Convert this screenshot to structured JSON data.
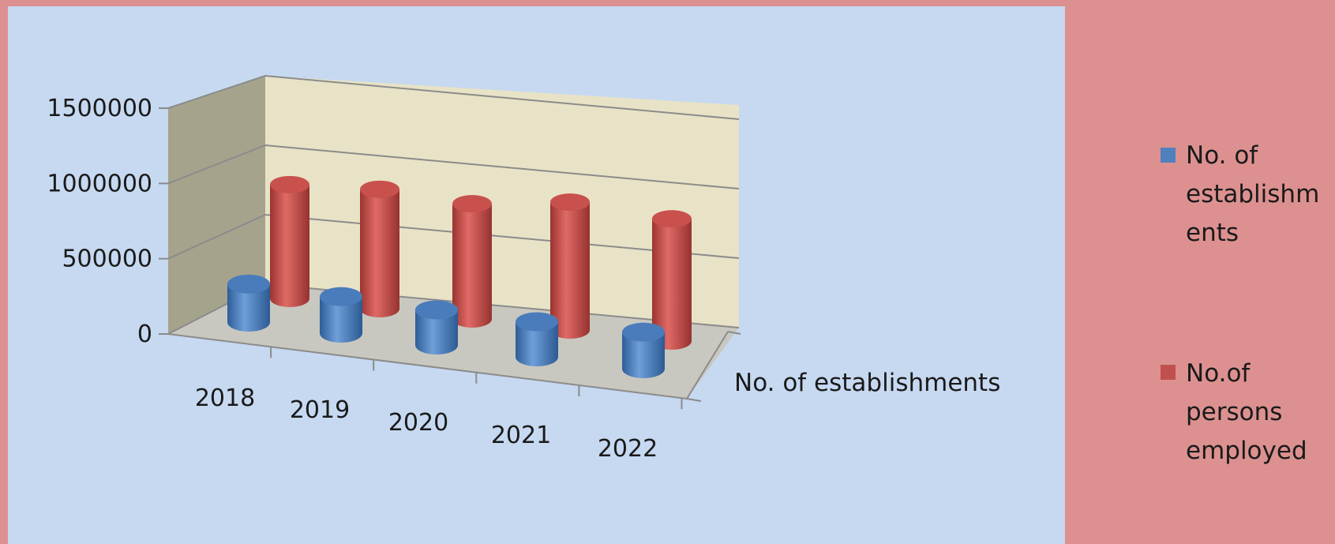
{
  "colors": {
    "frame": "#dc9190",
    "plot_area": "#c6d9f1",
    "back_wall": "#e8e3c6",
    "side_wall": "#a6a38c",
    "floor": "#c8c8c0",
    "establishments": "#4f81bd",
    "persons": "#c0504d"
  },
  "chart_data": {
    "type": "bar",
    "variant": "3d-cylinder",
    "title": "",
    "categories": [
      "2018",
      "2019",
      "2020",
      "2021",
      "2022"
    ],
    "depth_axis_labels": [
      "No. of establishments"
    ],
    "series": [
      {
        "name": "No. of establishments",
        "values": [
          260000,
          250000,
          240000,
          240000,
          250000
        ],
        "color_key": "establishments"
      },
      {
        "name": "No.of persons employed",
        "values": [
          810000,
          850000,
          820000,
          910000,
          870000
        ],
        "color_key": "persons"
      }
    ],
    "y_ticks": [
      "0",
      "500000",
      "1000000",
      "1500000"
    ],
    "ylim": [
      0,
      1500000
    ],
    "legend_position": "right",
    "gridlines": true
  }
}
